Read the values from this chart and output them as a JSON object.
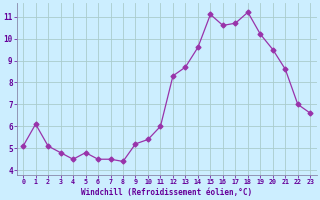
{
  "x": [
    0,
    1,
    2,
    3,
    4,
    5,
    6,
    7,
    8,
    9,
    10,
    11,
    12,
    13,
    14,
    15,
    16,
    17,
    18,
    19,
    20,
    21,
    22,
    23
  ],
  "y": [
    5.1,
    6.1,
    5.1,
    4.8,
    4.5,
    4.8,
    4.5,
    4.5,
    4.4,
    5.2,
    5.4,
    6.0,
    8.3,
    8.7,
    9.6,
    11.1,
    10.6,
    10.7,
    11.2,
    10.2,
    9.5,
    8.6,
    7.0,
    6.6
  ],
  "line_color": "#9933AA",
  "marker": "D",
  "marker_size": 2.5,
  "bg_color": "#CCEEFF",
  "grid_color": "#AACCCC",
  "xlabel": "Windchill (Refroidissement éolien,°C)",
  "xlabel_color": "#660099",
  "tick_color": "#660099",
  "spine_color": "#8888AA",
  "ylim": [
    3.8,
    11.6
  ],
  "yticks": [
    4,
    5,
    6,
    7,
    8,
    9,
    10,
    11
  ],
  "xlim": [
    -0.5,
    23.5
  ],
  "xticks": [
    0,
    1,
    2,
    3,
    4,
    5,
    6,
    7,
    8,
    9,
    10,
    11,
    12,
    13,
    14,
    15,
    16,
    17,
    18,
    19,
    20,
    21,
    22,
    23
  ]
}
